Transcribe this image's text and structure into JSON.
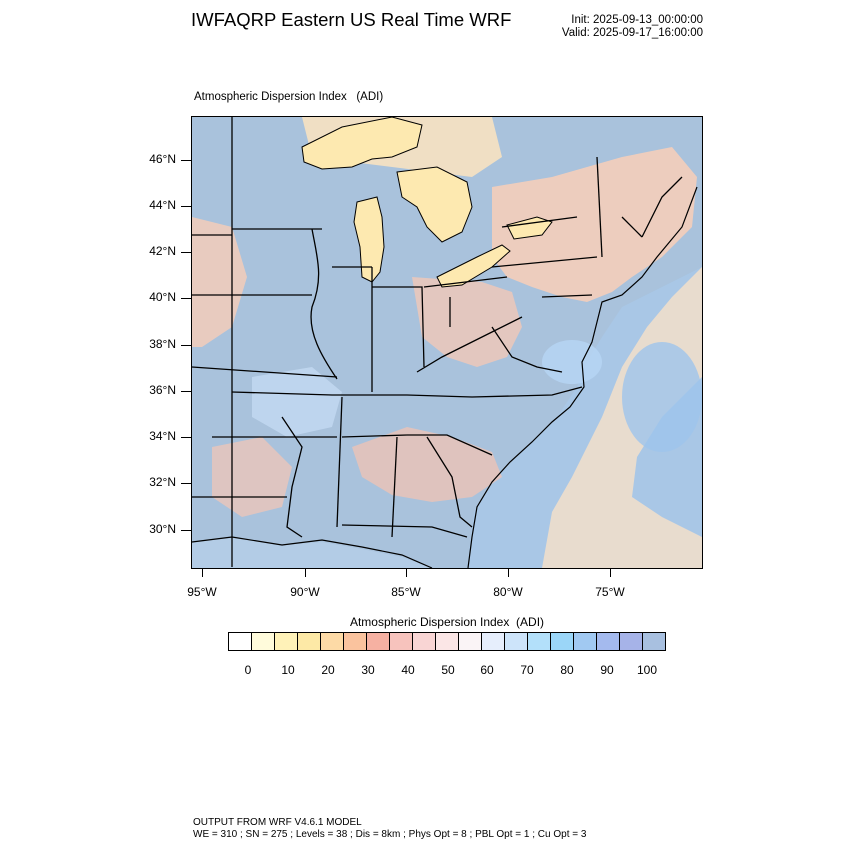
{
  "header": {
    "title": "IWFAQRP Eastern US Real Time WRF",
    "init": "Init: 2025-09-13_00:00:00",
    "valid": "Valid: 2025-09-17_16:00:00"
  },
  "plot": {
    "title": "Atmospheric Dispersion Index   (ADI)"
  },
  "map": {
    "latitude_labels": [
      "46°N",
      "44°N",
      "42°N",
      "40°N",
      "38°N",
      "36°N",
      "34°N",
      "32°N",
      "30°N"
    ],
    "longitude_labels": [
      "95°W",
      "90°W",
      "85°W",
      "80°W",
      "75°W"
    ],
    "colors": {
      "ocean_offshore": "#a9c4de",
      "land_default": "#a8c2dc",
      "great_lakes": "#fde9b0",
      "border": "#000000"
    }
  },
  "colorbar": {
    "title": "Atmospheric Dispersion Index  (ADI)",
    "tick_labels": [
      "0",
      "10",
      "20",
      "30",
      "40",
      "50",
      "60",
      "70",
      "80",
      "90",
      "100"
    ],
    "colors": [
      "#ffffff",
      "#fffbdb",
      "#fff2b8",
      "#fde9a6",
      "#fddaa6",
      "#fac39e",
      "#f6b1a2",
      "#f7c3bd",
      "#f9d5d4",
      "#fbe6e6",
      "#faf4f6",
      "#e6eefc",
      "#cde4fa",
      "#b3e0fa",
      "#9bd6f8",
      "#a1c9f2",
      "#a4baee",
      "#a6b3e8",
      "#a8c0e0"
    ]
  },
  "footer": {
    "line1": "OUTPUT FROM WRF V4.6.1 MODEL",
    "line2": "WE = 310 ; SN = 275 ; Levels = 38 ; Dis = 8km ; Phys Opt = 8 ; PBL Opt = 1 ; Cu Opt = 3"
  }
}
